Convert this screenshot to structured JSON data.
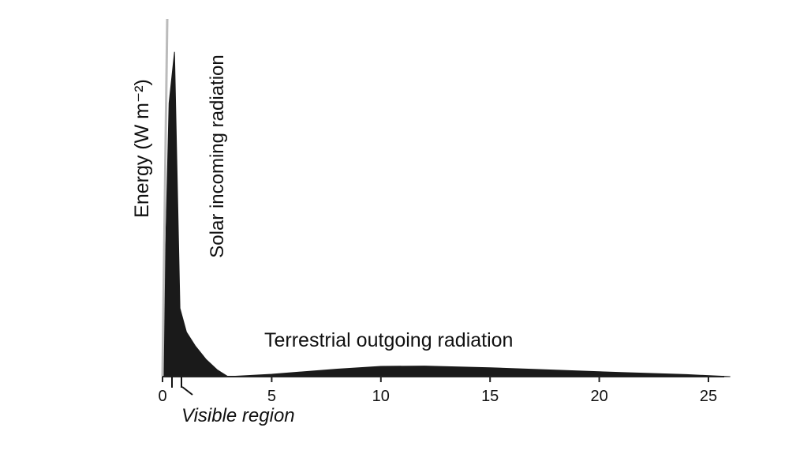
{
  "chart_data": {
    "type": "area",
    "title": "",
    "xlabel": "",
    "ylabel": "Energy (W m⁻²)",
    "xlim": [
      0,
      26
    ],
    "ylim": [
      0,
      100
    ],
    "x_ticks": [
      0,
      5,
      10,
      15,
      20,
      25
    ],
    "grid": false,
    "legend": "none",
    "colors": {
      "fill": "#1a1a1a",
      "axis": "#222222"
    },
    "series": [
      {
        "name": "Solar incoming radiation",
        "x": [
          0.0,
          0.3,
          0.55,
          0.8,
          1.1,
          1.5,
          2.0,
          2.5,
          3.0
        ],
        "values": [
          0,
          80,
          95,
          20,
          13,
          9,
          5,
          2,
          0
        ]
      },
      {
        "name": "Terrestrial outgoing radiation",
        "x": [
          3.0,
          5.0,
          8.0,
          10.0,
          12.0,
          15.0,
          18.0,
          21.0,
          24.0,
          26.0
        ],
        "values": [
          0,
          0.7,
          2.2,
          3.0,
          3.1,
          2.6,
          1.9,
          1.2,
          0.6,
          0
        ]
      }
    ],
    "annotations": {
      "visible_region": "Visible region"
    }
  }
}
